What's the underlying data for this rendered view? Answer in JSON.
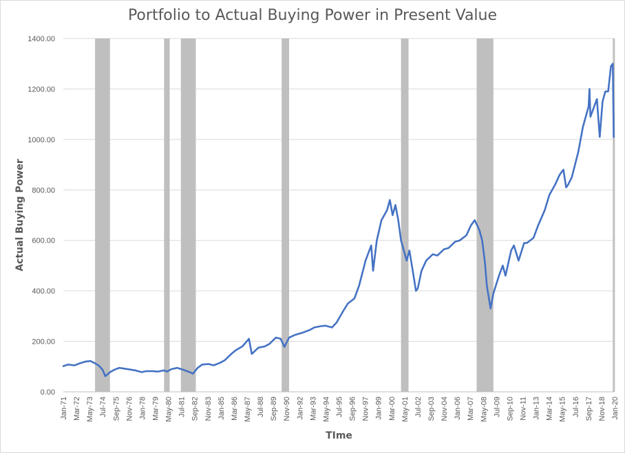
{
  "chart_data": {
    "type": "line",
    "title": "Portfolio to Actual Buying Power in Present Value",
    "xlabel": "TIme",
    "ylabel": "Actual Buying Power",
    "ylim": [
      0,
      1400
    ],
    "y_ticks": [
      "0.00",
      "200.00",
      "400.00",
      "600.00",
      "800.00",
      "1000.00",
      "1200.00",
      "1400.00"
    ],
    "x_range": [
      "1971-01",
      "2020-04"
    ],
    "x_ticks": [
      "Jan-71",
      "Mar-72",
      "May-73",
      "Jul-74",
      "Sep-75",
      "Nov-76",
      "Jan-78",
      "Mar-79",
      "May-80",
      "Jul-81",
      "Sep-82",
      "Nov-83",
      "Jan-85",
      "Mar-86",
      "May-87",
      "Jul-88",
      "Sep-89",
      "Nov-90",
      "Jan-92",
      "Mar-93",
      "May-94",
      "Jul-95",
      "Sep-96",
      "Nov-97",
      "Jan-99",
      "Mar-00",
      "May-01",
      "Jul-02",
      "Sep-03",
      "Nov-04",
      "Jan-06",
      "Mar-07",
      "May-08",
      "Jul-09",
      "Sep-10",
      "Nov-11",
      "Jan-13",
      "Mar-14",
      "May-15",
      "Jul-16",
      "Sep-17",
      "Nov-18",
      "Jan-20"
    ],
    "gridlines": true,
    "line_color": "#4472c4",
    "recession_color": "#bfbfbf",
    "recessions": [
      [
        "1973-11",
        "1975-03"
      ],
      [
        "1980-01",
        "1980-07"
      ],
      [
        "1981-07",
        "1982-11"
      ],
      [
        "1990-07",
        "1991-03"
      ],
      [
        "2001-03",
        "2001-11"
      ],
      [
        "2007-12",
        "2009-06"
      ],
      [
        "2020-02",
        "2020-04"
      ]
    ],
    "series": [
      {
        "name": "",
        "x": [
          "1971-01",
          "1971-06",
          "1972-01",
          "1972-06",
          "1973-01",
          "1973-06",
          "1973-10",
          "1974-03",
          "1974-07",
          "1974-10",
          "1975-03",
          "1975-08",
          "1976-01",
          "1976-06",
          "1977-01",
          "1977-06",
          "1978-01",
          "1978-06",
          "1979-01",
          "1979-06",
          "1980-01",
          "1980-04",
          "1980-09",
          "1981-03",
          "1981-09",
          "1982-03",
          "1982-08",
          "1983-01",
          "1983-06",
          "1984-01",
          "1984-06",
          "1985-01",
          "1985-06",
          "1986-01",
          "1986-06",
          "1987-01",
          "1987-08",
          "1987-11",
          "1988-06",
          "1989-01",
          "1989-06",
          "1990-01",
          "1990-06",
          "1990-10",
          "1991-03",
          "1991-09",
          "1992-06",
          "1993-01",
          "1993-06",
          "1994-01",
          "1994-06",
          "1995-01",
          "1995-06",
          "1996-01",
          "1996-06",
          "1997-01",
          "1997-06",
          "1998-01",
          "1998-07",
          "1998-09",
          "1999-01",
          "1999-06",
          "1999-12",
          "2000-03",
          "2000-06",
          "2000-09",
          "2000-12",
          "2001-03",
          "2001-06",
          "2001-09",
          "2001-12",
          "2002-04",
          "2002-07",
          "2002-09",
          "2003-01",
          "2003-06",
          "2004-01",
          "2004-06",
          "2005-01",
          "2005-06",
          "2006-01",
          "2006-06",
          "2007-01",
          "2007-06",
          "2007-10",
          "2008-03",
          "2008-06",
          "2008-09",
          "2008-11",
          "2009-03",
          "2009-06",
          "2009-12",
          "2010-04",
          "2010-07",
          "2011-01",
          "2011-04",
          "2011-09",
          "2012-03",
          "2012-06",
          "2013-01",
          "2013-06",
          "2014-01",
          "2014-06",
          "2014-12",
          "2015-05",
          "2015-09",
          "2015-12",
          "2016-02",
          "2016-06",
          "2017-01",
          "2017-06",
          "2017-12",
          "2018-01",
          "2018-02",
          "2018-06",
          "2018-09",
          "2018-12",
          "2019-03",
          "2019-06",
          "2019-09",
          "2019-12",
          "2020-02",
          "2020-03"
        ],
        "values": [
          102,
          108,
          105,
          112,
          120,
          122,
          115,
          104,
          88,
          62,
          78,
          88,
          95,
          92,
          88,
          85,
          78,
          82,
          82,
          80,
          85,
          80,
          90,
          95,
          88,
          80,
          72,
          95,
          108,
          110,
          105,
          115,
          125,
          150,
          165,
          180,
          210,
          150,
          175,
          180,
          190,
          215,
          210,
          178,
          215,
          225,
          235,
          245,
          255,
          260,
          262,
          255,
          275,
          320,
          350,
          370,
          420,
          520,
          580,
          480,
          600,
          680,
          720,
          760,
          700,
          740,
          680,
          600,
          560,
          520,
          560,
          470,
          400,
          410,
          480,
          520,
          545,
          540,
          565,
          570,
          595,
          600,
          620,
          660,
          680,
          640,
          600,
          510,
          420,
          330,
          390,
          460,
          500,
          460,
          560,
          580,
          520,
          590,
          590,
          610,
          660,
          720,
          780,
          820,
          860,
          880,
          810,
          820,
          850,
          950,
          1050,
          1130,
          1200,
          1090,
          1130,
          1160,
          1010,
          1150,
          1190,
          1190,
          1290,
          1300,
          1010
        ]
      }
    ]
  }
}
